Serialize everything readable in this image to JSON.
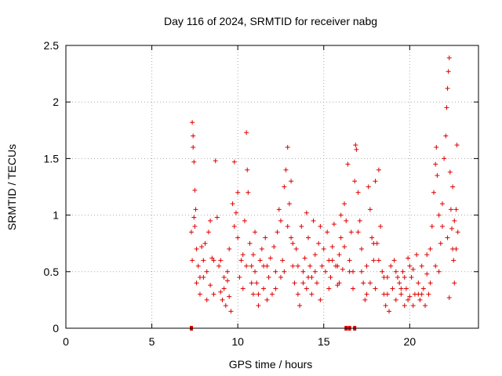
{
  "chart_data": {
    "type": "scatter",
    "title": "Day 116 of 2024, SRMTID for receiver nabg",
    "xlabel": "GPS time / hours",
    "ylabel": "SRMTID / TECUs",
    "xlim": [
      0,
      24
    ],
    "ylim": [
      0,
      2.5
    ],
    "xticks": [
      "0",
      "5",
      "10",
      "15",
      "20"
    ],
    "yticks": [
      "0",
      "0.5",
      "1",
      "1.5",
      "2",
      "2.5"
    ],
    "grid": true,
    "legend": "none",
    "marker": "plus",
    "color": "#dd0000",
    "series": [
      {
        "points": [
          [
            7.3,
            0.85
          ],
          [
            7.35,
            1.82
          ],
          [
            7.4,
            1.7
          ],
          [
            7.4,
            1.6
          ],
          [
            7.45,
            1.47
          ],
          [
            7.5,
            1.22
          ],
          [
            7.55,
            1.05
          ],
          [
            7.45,
            0.98
          ],
          [
            7.5,
            0.9
          ],
          [
            7.6,
            0.7
          ],
          [
            7.7,
            0.55
          ],
          [
            7.8,
            0.45
          ],
          [
            7.9,
            0.72
          ],
          [
            8.0,
            0.6
          ],
          [
            8.1,
            0.75
          ],
          [
            8.2,
            0.5
          ],
          [
            8.3,
            0.85
          ],
          [
            8.4,
            0.38
          ],
          [
            8.5,
            0.62
          ],
          [
            8.6,
            0.3
          ],
          [
            8.7,
            1.48
          ],
          [
            8.8,
            0.98
          ],
          [
            8.9,
            0.55
          ],
          [
            9.0,
            0.32
          ],
          [
            9.1,
            0.25
          ],
          [
            9.2,
            0.45
          ],
          [
            9.3,
            0.2
          ],
          [
            9.4,
            0.5
          ],
          [
            9.5,
            0.7
          ],
          [
            9.6,
            0.15
          ],
          [
            9.7,
            1.1
          ],
          [
            9.8,
            1.47
          ],
          [
            9.9,
            1.02
          ],
          [
            10.0,
            0.8
          ],
          [
            10.1,
            0.45
          ],
          [
            10.2,
            0.6
          ],
          [
            10.3,
            0.35
          ],
          [
            10.4,
            0.95
          ],
          [
            10.5,
            1.73
          ],
          [
            10.55,
            1.4
          ],
          [
            10.6,
            1.2
          ],
          [
            10.7,
            0.75
          ],
          [
            10.8,
            0.55
          ],
          [
            10.9,
            0.3
          ],
          [
            11.0,
            0.5
          ],
          [
            11.1,
            0.4
          ],
          [
            11.2,
            0.2
          ],
          [
            11.3,
            0.6
          ],
          [
            11.4,
            0.7
          ],
          [
            11.5,
            0.35
          ],
          [
            11.6,
            0.8
          ],
          [
            11.7,
            0.55
          ],
          [
            11.8,
            0.45
          ],
          [
            11.9,
            0.62
          ],
          [
            12.0,
            0.3
          ],
          [
            12.1,
            0.72
          ],
          [
            12.2,
            0.5
          ],
          [
            12.3,
            0.85
          ],
          [
            12.4,
            1.05
          ],
          [
            12.5,
            0.95
          ],
          [
            12.6,
            0.6
          ],
          [
            12.7,
            1.25
          ],
          [
            12.8,
            1.4
          ],
          [
            12.9,
            1.6
          ],
          [
            13.0,
            1.1
          ],
          [
            13.1,
            0.8
          ],
          [
            13.2,
            0.55
          ],
          [
            13.3,
            0.4
          ],
          [
            13.4,
            0.7
          ],
          [
            13.5,
            0.3
          ],
          [
            13.6,
            0.2
          ],
          [
            13.7,
            0.9
          ],
          [
            13.8,
            0.5
          ],
          [
            13.9,
            0.62
          ],
          [
            14.0,
            0.35
          ],
          [
            14.1,
            0.8
          ],
          [
            14.2,
            0.55
          ],
          [
            14.3,
            0.45
          ],
          [
            14.4,
            0.95
          ],
          [
            14.5,
            0.65
          ],
          [
            14.6,
            0.4
          ],
          [
            14.7,
            0.75
          ],
          [
            14.8,
            0.9
          ],
          [
            14.9,
            0.55
          ],
          [
            15.0,
            0.7
          ],
          [
            15.1,
            0.5
          ],
          [
            15.2,
            0.85
          ],
          [
            15.3,
            0.6
          ],
          [
            15.4,
            0.45
          ],
          [
            15.5,
            0.72
          ],
          [
            15.6,
            0.92
          ],
          [
            15.7,
            0.55
          ],
          [
            15.8,
            0.38
          ],
          [
            15.9,
            0.65
          ],
          [
            16.0,
            0.8
          ],
          [
            16.1,
            0.52
          ],
          [
            16.2,
            1.1
          ],
          [
            16.3,
            0.95
          ],
          [
            16.4,
            1.45
          ],
          [
            16.5,
            0.6
          ],
          [
            16.6,
            0.85
          ],
          [
            16.7,
            0.5
          ],
          [
            16.8,
            1.3
          ],
          [
            16.85,
            1.62
          ],
          [
            16.9,
            1.58
          ],
          [
            17.0,
            1.2
          ],
          [
            17.1,
            0.95
          ],
          [
            17.2,
            0.7
          ],
          [
            17.3,
            0.4
          ],
          [
            17.4,
            0.25
          ],
          [
            17.5,
            0.55
          ],
          [
            17.6,
            1.25
          ],
          [
            17.7,
            1.05
          ],
          [
            17.8,
            0.8
          ],
          [
            17.9,
            0.6
          ],
          [
            18.0,
            0.35
          ],
          [
            18.1,
            0.75
          ],
          [
            18.2,
            1.4
          ],
          [
            18.3,
            0.9
          ],
          [
            18.4,
            0.5
          ],
          [
            18.5,
            0.3
          ],
          [
            18.6,
            0.2
          ],
          [
            18.7,
            0.45
          ],
          [
            18.8,
            0.15
          ],
          [
            18.9,
            0.55
          ],
          [
            19.0,
            0.35
          ],
          [
            19.1,
            0.6
          ],
          [
            19.2,
            0.25
          ],
          [
            19.3,
            0.45
          ],
          [
            19.4,
            0.4
          ],
          [
            19.5,
            0.3
          ],
          [
            19.6,
            0.5
          ],
          [
            19.7,
            0.2
          ],
          [
            19.8,
            0.35
          ],
          [
            19.9,
            0.62
          ],
          [
            20.0,
            0.28
          ],
          [
            20.1,
            0.45
          ],
          [
            20.2,
            0.52
          ],
          [
            20.3,
            0.3
          ],
          [
            20.4,
            0.65
          ],
          [
            20.5,
            0.4
          ],
          [
            20.6,
            0.25
          ],
          [
            20.7,
            0.55
          ],
          [
            20.8,
            0.35
          ],
          [
            20.9,
            0.2
          ],
          [
            21.0,
            0.48
          ],
          [
            21.1,
            0.3
          ],
          [
            21.2,
            0.7
          ],
          [
            21.3,
            0.9
          ],
          [
            21.4,
            1.2
          ],
          [
            21.5,
            1.45
          ],
          [
            21.55,
            1.6
          ],
          [
            21.6,
            1.35
          ],
          [
            21.7,
            1.0
          ],
          [
            21.8,
            0.75
          ],
          [
            21.9,
            1.1
          ],
          [
            22.0,
            1.5
          ],
          [
            22.1,
            1.7
          ],
          [
            22.15,
            1.95
          ],
          [
            22.2,
            2.12
          ],
          [
            22.25,
            2.27
          ],
          [
            22.3,
            2.39
          ],
          [
            22.35,
            1.38
          ],
          [
            22.4,
            1.05
          ],
          [
            22.45,
            0.88
          ],
          [
            22.5,
            1.25
          ],
          [
            22.55,
            0.6
          ],
          [
            22.6,
            0.95
          ],
          [
            22.7,
            0.7
          ],
          [
            22.75,
            1.62
          ],
          [
            22.8,
            0.85
          ],
          [
            22.3,
            0.27
          ],
          [
            22.6,
            0.4
          ],
          [
            7.35,
            0.6
          ],
          [
            7.6,
            0.4
          ],
          [
            7.8,
            0.3
          ],
          [
            8.2,
            0.25
          ],
          [
            8.6,
            0.6
          ],
          [
            9.2,
            0.35
          ],
          [
            9.5,
            0.28
          ],
          [
            10.3,
            0.65
          ],
          [
            10.8,
            0.4
          ],
          [
            11.2,
            0.3
          ],
          [
            11.7,
            0.25
          ],
          [
            12.2,
            0.35
          ],
          [
            12.7,
            0.5
          ],
          [
            13.2,
            0.75
          ],
          [
            13.8,
            0.4
          ],
          [
            14.3,
            0.3
          ],
          [
            14.8,
            0.25
          ],
          [
            15.3,
            0.35
          ],
          [
            15.8,
            0.55
          ],
          [
            16.2,
            0.72
          ],
          [
            16.7,
            0.35
          ],
          [
            17.2,
            0.5
          ],
          [
            17.7,
            0.4
          ],
          [
            18.2,
            0.6
          ],
          [
            18.7,
            0.3
          ],
          [
            19.2,
            0.5
          ],
          [
            19.7,
            0.45
          ],
          [
            20.2,
            0.2
          ],
          [
            20.7,
            0.3
          ],
          [
            21.2,
            0.4
          ],
          [
            21.7,
            0.5
          ],
          [
            22.2,
            0.8
          ],
          [
            22.7,
            1.05
          ],
          [
            8.4,
            0.95
          ],
          [
            9.0,
            0.6
          ],
          [
            9.8,
            0.9
          ],
          [
            10.5,
            0.55
          ],
          [
            11.5,
            0.55
          ],
          [
            12.5,
            0.45
          ],
          [
            13.5,
            0.55
          ],
          [
            14.5,
            0.5
          ],
          [
            15.5,
            0.6
          ],
          [
            16.5,
            0.5
          ],
          [
            17.5,
            0.3
          ],
          [
            18.5,
            0.45
          ],
          [
            19.5,
            0.35
          ],
          [
            20.5,
            0.3
          ],
          [
            21.5,
            0.55
          ],
          [
            22.5,
            0.7
          ],
          [
            8.0,
            0.45
          ],
          [
            9.4,
            0.42
          ],
          [
            10.9,
            0.65
          ],
          [
            12.9,
            0.9
          ],
          [
            14.1,
            0.45
          ],
          [
            15.9,
            0.4
          ],
          [
            17.9,
            0.75
          ],
          [
            19.9,
            0.25
          ],
          [
            21.9,
            0.9
          ],
          [
            10.0,
            1.2
          ],
          [
            13.1,
            1.3
          ],
          [
            16.0,
            1.0
          ],
          [
            18.0,
            1.3
          ],
          [
            20.0,
            0.55
          ],
          [
            21.0,
            0.65
          ],
          [
            11.0,
            0.85
          ],
          [
            14.0,
            1.02
          ],
          [
            17.0,
            0.85
          ]
        ]
      }
    ],
    "gap_markers": [
      7.3,
      16.3,
      16.5,
      16.8
    ]
  }
}
